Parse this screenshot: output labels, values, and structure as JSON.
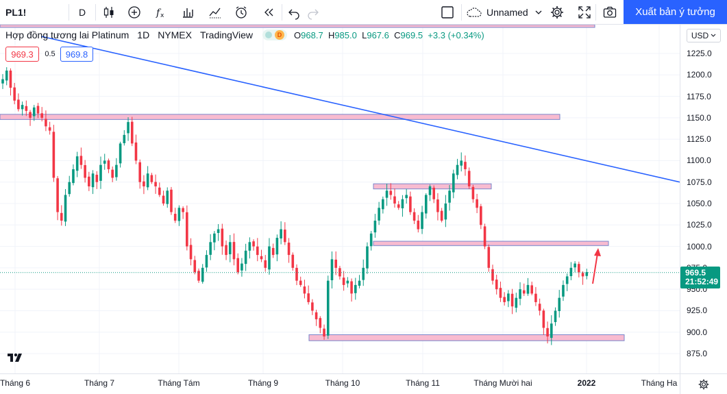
{
  "toolbar": {
    "symbol": "PL1!",
    "interval": "D",
    "layout_name": "Unnamed",
    "publish_label": "Xuất bản ý tưởng"
  },
  "legend": {
    "title": "Hợp đồng tương lai Platinum",
    "interval": "1D",
    "exchange": "NYMEX",
    "source": "TradingView",
    "badge": "D",
    "open_label": "O",
    "open": "968.7",
    "high_label": "H",
    "high": "985.0",
    "low_label": "L",
    "low": "967.6",
    "close_label": "C",
    "close": "969.5",
    "change": "+3.3 (+0.34%)"
  },
  "trade": {
    "sell": "969.3",
    "spread": "0.5",
    "buy": "969.8"
  },
  "price_axis": {
    "currency": "USD",
    "ticks": [
      "1225.0",
      "1200.0",
      "1175.0",
      "1150.0",
      "1125.0",
      "1100.0",
      "1075.0",
      "1050.0",
      "1025.0",
      "1000.0",
      "975.0",
      "950.0",
      "925.0",
      "900.0",
      "875.0"
    ],
    "last_price": "969.5",
    "countdown": "21:52:49"
  },
  "time_axis": {
    "ticks": [
      "Tháng 6",
      "Tháng 7",
      "Tháng Tám",
      "Tháng 9",
      "Tháng 10",
      "Tháng 11",
      "Tháng Mười hai",
      "2022",
      "Tháng Ha"
    ]
  },
  "colors": {
    "up": "#089981",
    "down": "#f23645",
    "zone_fill": "#f8bbd0",
    "zone_border": "#7986cb",
    "trendline": "#2962ff",
    "accent": "#2962ff"
  },
  "chart_data": {
    "type": "candlestick",
    "instrument": "PL1!",
    "close_last": 969.5,
    "ylim": [
      865,
      1240
    ],
    "x_ticks": [
      "Tháng 6",
      "Tháng 7",
      "Tháng Tám",
      "Tháng 9",
      "Tháng 10",
      "Tháng 11",
      "Tháng Mười hai",
      "2022",
      "Tháng Ha"
    ],
    "candles_close": [
      1195,
      1205,
      1185,
      1170,
      1160,
      1165,
      1158,
      1150,
      1162,
      1155,
      1150,
      1140,
      1135,
      1080,
      1040,
      1030,
      1060,
      1075,
      1090,
      1105,
      1095,
      1080,
      1070,
      1085,
      1075,
      1095,
      1100,
      1090,
      1080,
      1095,
      1120,
      1130,
      1145,
      1120,
      1100,
      1075,
      1070,
      1085,
      1075,
      1070,
      1060,
      1050,
      1065,
      1040,
      1030,
      1045,
      1040,
      1000,
      985,
      970,
      960,
      975,
      990,
      1005,
      1015,
      1020,
      1000,
      990,
      1005,
      985,
      970,
      980,
      995,
      1005,
      1000,
      990,
      985,
      975,
      1000,
      990,
      1010,
      1020,
      1005,
      990,
      975,
      960,
      955,
      945,
      935,
      925,
      915,
      905,
      895,
      960,
      985,
      975,
      965,
      955,
      960,
      945,
      955,
      960,
      975,
      1000,
      1015,
      1030,
      1045,
      1055,
      1065,
      1060,
      1050,
      1045,
      1055,
      1060,
      1040,
      1030,
      1020,
      1040,
      1060,
      1070,
      1055,
      1040,
      1030,
      1050,
      1065,
      1085,
      1095,
      1100,
      1090,
      1070,
      1055,
      1045,
      1025,
      1000,
      975,
      960,
      950,
      940,
      935,
      945,
      930,
      940,
      950,
      945,
      955,
      945,
      935,
      925,
      905,
      895,
      910,
      925,
      940,
      955,
      965,
      975,
      980,
      970,
      965,
      970
    ],
    "horizontal_zones": [
      {
        "low": 1148,
        "high": 1154
      },
      {
        "low": 1067,
        "high": 1073
      },
      {
        "low": 1001,
        "high": 1006
      },
      {
        "low": 890,
        "high": 897
      }
    ],
    "trendline": [
      {
        "x_index": 0,
        "y": 1260
      },
      {
        "x_index": 175,
        "y": 1080
      }
    ]
  }
}
